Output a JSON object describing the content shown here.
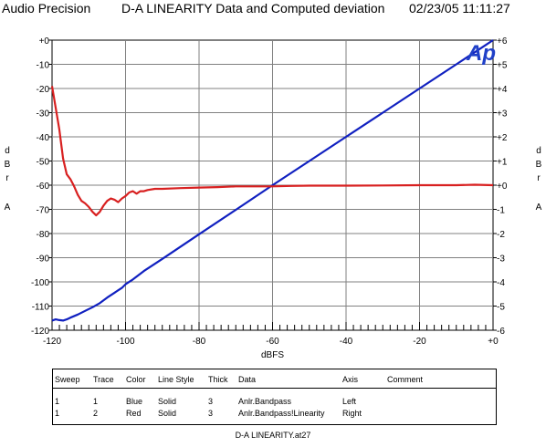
{
  "header": {
    "vendor": "Audio Precision",
    "title": "D-A LINEARITY  Data and Computed deviation",
    "datetime": "02/23/05 11:11:27"
  },
  "chart_data": {
    "type": "line",
    "xlabel": "dBFS",
    "ylabel_left": "dBrA",
    "ylabel_right": "dBrA",
    "xlim": [
      -120,
      0
    ],
    "ylim_left": [
      -120,
      0
    ],
    "ylim_right": [
      -6,
      6
    ],
    "x_ticks": [
      "-120",
      "-100",
      "-80",
      "-60",
      "-40",
      "-20",
      "+0"
    ],
    "y_left_ticks": [
      "+0",
      "-10",
      "-20",
      "-30",
      "-40",
      "-50",
      "-60",
      "-70",
      "-80",
      "-90",
      "-100",
      "-110",
      "-120"
    ],
    "y_right_ticks": [
      "+6",
      "+5",
      "+4",
      "+3",
      "+2",
      "+1",
      "+0",
      "-1",
      "-2",
      "-3",
      "-4",
      "-5",
      "-6"
    ],
    "grid": true,
    "logo": "Ap",
    "series": [
      {
        "trace": "1",
        "color": "#1020c0",
        "axis": "left",
        "x": [
          -120,
          -119,
          -118,
          -117,
          -116,
          -115,
          -113,
          -111,
          -109,
          -107,
          -105,
          -103,
          -101,
          -100,
          -98,
          -95,
          -90,
          -80,
          -70,
          -60,
          -50,
          -40,
          -30,
          -20,
          -10,
          -5,
          -2,
          0
        ],
        "y": [
          -116,
          -115.5,
          -115.8,
          -116,
          -115.5,
          -114.8,
          -113.5,
          -112,
          -110.5,
          -108.8,
          -106.5,
          -104.5,
          -102.5,
          -101,
          -99,
          -95.5,
          -90.5,
          -80.3,
          -70.2,
          -60,
          -50,
          -40,
          -30,
          -20,
          -10,
          -5,
          -2,
          0
        ]
      },
      {
        "trace": "2",
        "color": "#d82020",
        "axis": "right",
        "x": [
          -120,
          -119,
          -118,
          -117,
          -116,
          -115,
          -114,
          -113,
          -112,
          -111,
          -110,
          -109,
          -108,
          -107,
          -106,
          -105,
          -104,
          -103,
          -102,
          -101,
          -100,
          -99,
          -98,
          -97,
          -96,
          -95,
          -94,
          -92,
          -90,
          -85,
          -80,
          -75,
          -70,
          -65,
          -60,
          -55,
          -50,
          -40,
          -30,
          -20,
          -10,
          -5,
          0
        ],
        "y": [
          4.1,
          3.2,
          2.3,
          1.1,
          0.45,
          0.25,
          -0.05,
          -0.4,
          -0.65,
          -0.75,
          -0.9,
          -1.1,
          -1.25,
          -1.1,
          -0.85,
          -0.65,
          -0.55,
          -0.6,
          -0.7,
          -0.55,
          -0.45,
          -0.3,
          -0.25,
          -0.35,
          -0.25,
          -0.25,
          -0.2,
          -0.15,
          -0.15,
          -0.12,
          -0.1,
          -0.08,
          -0.05,
          -0.05,
          -0.05,
          -0.03,
          -0.02,
          -0.02,
          -0.01,
          0.0,
          0.0,
          0.02,
          0.0
        ]
      }
    ]
  },
  "legend": {
    "headers": [
      "Sweep",
      "Trace",
      "Color",
      "Line Style",
      "Thick",
      "Data",
      "Axis",
      "Comment"
    ],
    "rows": [
      [
        "1",
        "1",
        "Blue",
        "Solid",
        "3",
        "Anlr.Bandpass",
        "Left",
        ""
      ],
      [
        "1",
        "2",
        "Red",
        "Solid",
        "3",
        "Anlr.Bandpass!Linearity",
        "Right",
        ""
      ]
    ]
  },
  "footer": "D-A LINEARITY.at27"
}
